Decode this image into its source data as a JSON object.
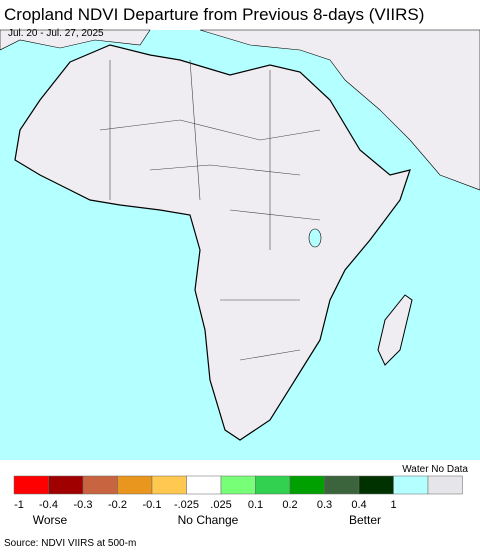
{
  "header": {
    "title": "Cropland NDVI Departure from Previous 8-days (VIIRS)",
    "subtitle": "Jul. 20 - Jul. 27, 2025"
  },
  "legend": {
    "header": "Water No Data",
    "colors": [
      "#ff0000",
      "#a00000",
      "#c86440",
      "#e8961e",
      "#ffc850",
      "#ffffff",
      "#78ff78",
      "#32d250",
      "#00a000",
      "#3c643c",
      "#003200",
      "#b4ffff",
      "#e6e6ea"
    ],
    "ticks": [
      "-1",
      "-0.4",
      "-0.3",
      "-0.2",
      "-0.1",
      "-.025",
      ".025",
      "0.1",
      "0.2",
      "0.3",
      "0.4",
      "1"
    ],
    "descriptors": [
      "Worse",
      "No Change",
      "Better"
    ]
  },
  "source": "Source: NDVI VIIRS at 500-m"
}
